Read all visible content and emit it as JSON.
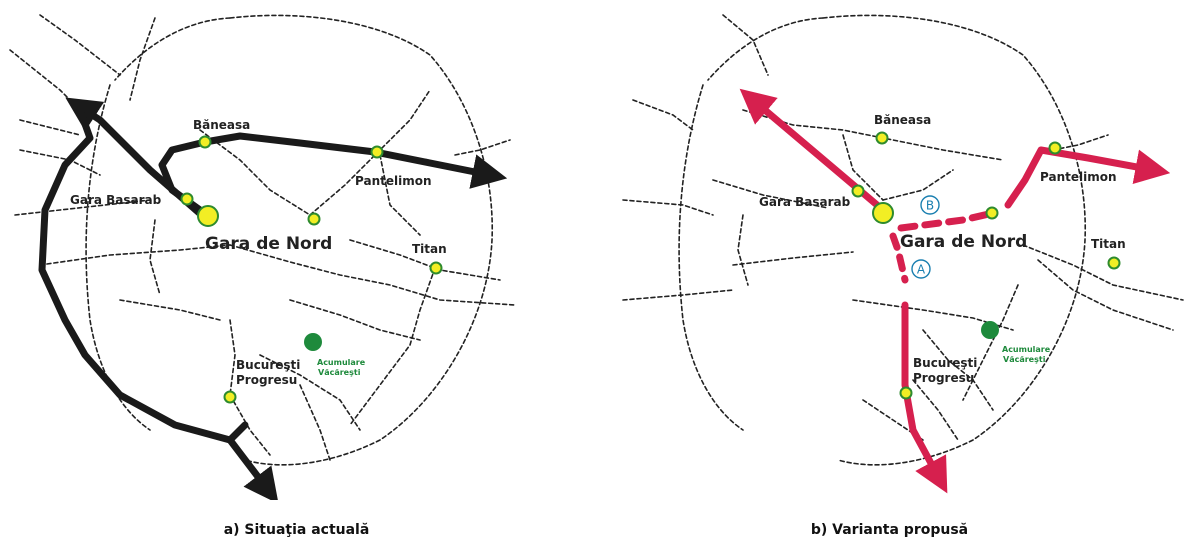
{
  "panel_a": {
    "caption": "a) Situaţia actuală",
    "labels": {
      "baneasa": "Băneasa",
      "gara_basarab": "Gara Basarab",
      "gara_de_nord": "Gara de Nord",
      "pantelimon": "Pantelimon",
      "titan": "Titan",
      "progresu_line1": "Bucureşti",
      "progresu_line2": "Progresu",
      "vacaresti_line1": "Acumulare",
      "vacaresti_line2": "Văcăreşti"
    }
  },
  "panel_b": {
    "caption": "b) Varianta propusă",
    "labels": {
      "baneasa": "Băneasa",
      "gara_basarab": "Gara Basarab",
      "gara_de_nord": "Gara de Nord",
      "pantelimon": "Pantelimon",
      "titan": "Titan",
      "progresu_line1": "Bucureşti",
      "progresu_line2": "Progresu",
      "vacaresti_line1": "Acumulare",
      "vacaresti_line2": "Văcăreşti",
      "marker_a": "A",
      "marker_b": "B"
    }
  },
  "colors": {
    "route_current": "#1a1a1a",
    "route_proposed": "#d6204e",
    "station_fill": "#f2ee24",
    "station_ring": "#2e8b2e",
    "lake": "#1e8a3c",
    "marker_ring": "#1a7fb0"
  }
}
